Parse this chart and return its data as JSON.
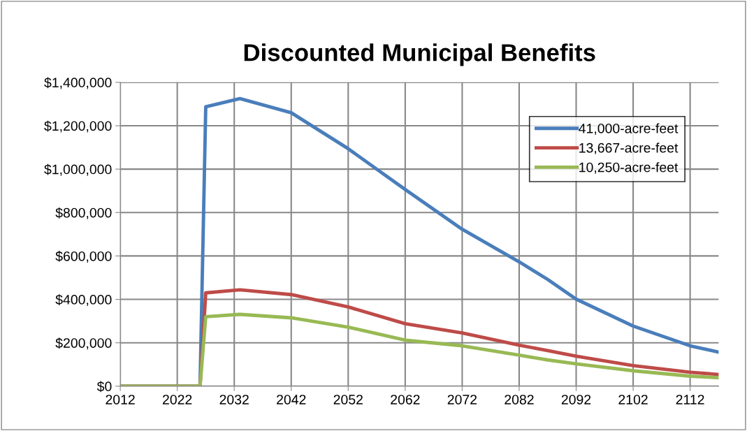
{
  "chart_data": {
    "type": "line",
    "title": "Discounted Municipal Benefits",
    "x": [
      2012,
      2026,
      2027,
      2033,
      2042,
      2052,
      2062,
      2072,
      2082,
      2087,
      2092,
      2102,
      2112,
      2117
    ],
    "series": [
      {
        "name": "41,000-acre-feet",
        "color": "#4a7ebb",
        "values": [
          0,
          0,
          1287000,
          1325000,
          1260000,
          1094000,
          906000,
          723000,
          573000,
          492000,
          401000,
          277000,
          186000,
          157000
        ]
      },
      {
        "name": "13,667-acre-feet",
        "color": "#be4b48",
        "values": [
          0,
          0,
          430000,
          444000,
          422000,
          365000,
          288000,
          245000,
          189000,
          164000,
          138000,
          95000,
          64000,
          54000
        ]
      },
      {
        "name": "10,250-acre-feet",
        "color": "#98b954",
        "values": [
          0,
          0,
          320000,
          331000,
          315000,
          272000,
          212000,
          186000,
          143000,
          121000,
          103000,
          71000,
          46000,
          39000
        ]
      }
    ],
    "xlim": [
      2012,
      2117
    ],
    "xticks": [
      2012,
      2022,
      2032,
      2042,
      2052,
      2062,
      2072,
      2082,
      2092,
      2102,
      2112
    ],
    "ylim": [
      0,
      1400000
    ],
    "yticks": [
      {
        "value": 0,
        "label": "$0"
      },
      {
        "value": 200000,
        "label": "$200,000"
      },
      {
        "value": 400000,
        "label": "$400,000"
      },
      {
        "value": 600000,
        "label": "$600,000"
      },
      {
        "value": 800000,
        "label": "$800,000"
      },
      {
        "value": 1000000,
        "label": "$1,000,000"
      },
      {
        "value": 1200000,
        "label": "$1,200,000"
      },
      {
        "value": 1400000,
        "label": "$1,400,000"
      }
    ],
    "grid": true,
    "legend": "top right",
    "marker": "none",
    "line_style": "solid"
  }
}
